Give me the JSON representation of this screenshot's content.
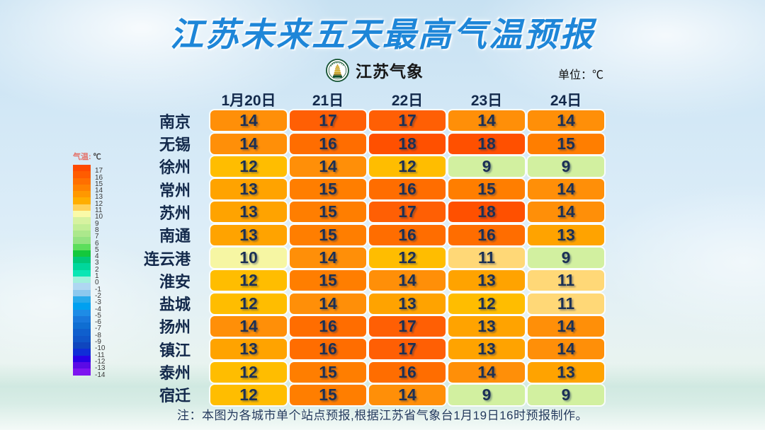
{
  "title": "江苏未来五天最高气温预报",
  "brand": {
    "name": "江苏气象"
  },
  "unit_label": "单位：℃",
  "note": "注：本图为各城市单个站点预报,根据江苏省气象台1月19日16时预报制作。",
  "chart_data": {
    "type": "heatmap",
    "title": "江苏未来五天最高气温预报",
    "unit": "℃",
    "columns": [
      "1月20日",
      "21日",
      "22日",
      "23日",
      "24日"
    ],
    "rows": [
      "南京",
      "无锡",
      "徐州",
      "常州",
      "苏州",
      "南通",
      "连云港",
      "淮安",
      "盐城",
      "扬州",
      "镇江",
      "泰州",
      "宿迁"
    ],
    "values": [
      [
        14,
        17,
        17,
        14,
        14
      ],
      [
        14,
        16,
        18,
        18,
        15
      ],
      [
        12,
        14,
        12,
        9,
        9
      ],
      [
        13,
        15,
        16,
        15,
        14
      ],
      [
        13,
        15,
        17,
        18,
        14
      ],
      [
        13,
        15,
        16,
        16,
        13
      ],
      [
        10,
        14,
        12,
        11,
        9
      ],
      [
        12,
        15,
        14,
        13,
        11
      ],
      [
        12,
        14,
        13,
        12,
        11
      ],
      [
        14,
        16,
        17,
        13,
        14
      ],
      [
        13,
        16,
        17,
        13,
        14
      ],
      [
        12,
        15,
        16,
        14,
        13
      ],
      [
        12,
        15,
        14,
        9,
        9
      ]
    ],
    "colorscale_range": [
      17,
      -14
    ],
    "legend_position": "left"
  },
  "temp_colors": {
    "9": "#D2F0A0",
    "10": "#F6F6A3",
    "11": "#FFD877",
    "12": "#FFBD00",
    "13": "#FFA300",
    "14": "#FF8F08",
    "15": "#FF7E00",
    "16": "#FF6D00",
    "17": "#FF5F04",
    "18": "#FF5000"
  },
  "legend": {
    "title_temp": "气温:",
    "title_unit": "℃",
    "entries": [
      {
        "label": "17",
        "color": "#FF4A00"
      },
      {
        "label": "16",
        "color": "#FF5C00"
      },
      {
        "label": "15",
        "color": "#FF6F00"
      },
      {
        "label": "14",
        "color": "#FF8200"
      },
      {
        "label": "13",
        "color": "#FF9800"
      },
      {
        "label": "12",
        "color": "#FFAE00"
      },
      {
        "label": "11",
        "color": "#FFD25A"
      },
      {
        "label": "10",
        "color": "#FAFAA8"
      },
      {
        "label": "9",
        "color": "#D7F2A0"
      },
      {
        "label": "8",
        "color": "#C2EE96"
      },
      {
        "label": "7",
        "color": "#ACE88C"
      },
      {
        "label": "6",
        "color": "#94E382"
      },
      {
        "label": "5",
        "color": "#5CDE5C"
      },
      {
        "label": "4",
        "color": "#14C83C"
      },
      {
        "label": "3",
        "color": "#00C878"
      },
      {
        "label": "2",
        "color": "#00D79B"
      },
      {
        "label": "1",
        "color": "#0AE6B4"
      },
      {
        "label": "0",
        "color": "#A0F0DC"
      },
      {
        "label": "-1",
        "color": "#AFD7F2"
      },
      {
        "label": "-2",
        "color": "#8CC8EE"
      },
      {
        "label": "-3",
        "color": "#28AAEB"
      },
      {
        "label": "-4",
        "color": "#00A0F0"
      },
      {
        "label": "-5",
        "color": "#1E8CE6"
      },
      {
        "label": "-6",
        "color": "#1978DC"
      },
      {
        "label": "-7",
        "color": "#0F6ED2"
      },
      {
        "label": "-8",
        "color": "#0F5FCD"
      },
      {
        "label": "-9",
        "color": "#0F55C8"
      },
      {
        "label": "-10",
        "color": "#0F46BE"
      },
      {
        "label": "-11",
        "color": "#0F2DD7"
      },
      {
        "label": "-12",
        "color": "#2800E6"
      },
      {
        "label": "-13",
        "color": "#5A0AE6"
      },
      {
        "label": "-14",
        "color": "#7D14F0"
      }
    ]
  }
}
